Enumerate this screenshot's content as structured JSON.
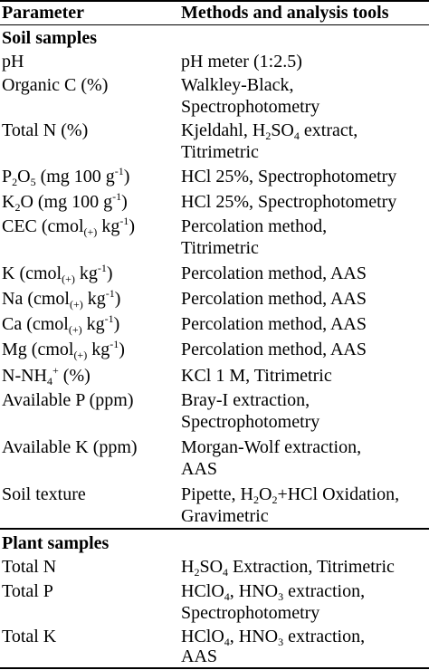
{
  "table": {
    "headers": {
      "parameter": "Parameter",
      "methods": "Methods and analysis tools"
    },
    "sections": {
      "soil": "Soil samples",
      "plant": "Plant samples"
    },
    "rows": {
      "ph": {
        "p": "pH",
        "m": [
          "pH meter (1:2.5)"
        ]
      },
      "organic_c": {
        "p": "Organic C (%)",
        "m": [
          "Walkley-Black,",
          "Spectrophotometry"
        ]
      },
      "total_n": {
        "p": "Total N (%)",
        "m_a": "Kjeldahl, H",
        "m_sub": "2",
        "m_b": "SO",
        "m_sub2": "4",
        "m_c": " extract,",
        "m2": "Titrimetric"
      },
      "p2o5": {
        "p_a": "P",
        "p_sub": "2",
        "p_b": "O",
        "p_sub2": "5",
        "p_c": " (mg 100 g",
        "p_sup": "-1",
        "p_d": ")",
        "m": "HCl 25%, Spectrophotometry"
      },
      "k2o": {
        "p_a": "K",
        "p_sub": "2",
        "p_b": "O (mg 100 g",
        "p_sup": "-1",
        "p_c": ")",
        "m": "HCl 25%, Spectrophotometry"
      },
      "cec": {
        "p_a": "CEC (cmol",
        "p_sub": "(+)",
        "p_b": " kg",
        "p_sup": "-1",
        "p_c": ")",
        "m": [
          "Percolation method,",
          "Titrimetric"
        ]
      },
      "k": {
        "p_a": "K (cmol",
        "p_sub": "(+)",
        "p_b": " kg",
        "p_sup": "-1",
        "p_c": ")",
        "m": "Percolation method, AAS"
      },
      "na": {
        "p_a": "Na (cmol",
        "p_sub": "(+)",
        "p_b": " kg",
        "p_sup": "-1",
        "p_c": ")",
        "m": "Percolation method, AAS"
      },
      "ca": {
        "p_a": "Ca (cmol",
        "p_sub": "(+)",
        "p_b": " kg",
        "p_sup": "-1",
        "p_c": ")",
        "m": "Percolation method, AAS"
      },
      "mg": {
        "p_a": "Mg (cmol",
        "p_sub": "(+)",
        "p_b": " kg",
        "p_sup": "-1",
        "p_c": ")",
        "m": "Percolation method, AAS"
      },
      "nh4": {
        "p_a": "N-NH",
        "p_sub": "4",
        "p_sup": "+",
        "p_b": " (%)",
        "m": "KCl 1 M, Titrimetric"
      },
      "avail_p": {
        "p": "Available P (ppm)",
        "m": [
          "Bray-I extraction,",
          "Spectrophotometry"
        ]
      },
      "avail_k": {
        "p": "Available K (ppm)",
        "m": [
          "Morgan-Wolf extraction,",
          "AAS"
        ]
      },
      "texture": {
        "p": "Soil texture",
        "m_a": "Pipette, H",
        "m_sub": "2",
        "m_b": "O",
        "m_sub2": "2",
        "m_c": "+HCl Oxidation,",
        "m2": "Gravimetric"
      },
      "plant_n": {
        "p": "Total N",
        "m_a": "H",
        "m_sub": "2",
        "m_b": "SO",
        "m_sub2": "4",
        "m_c": " Extraction, Titrimetric"
      },
      "plant_p": {
        "p": "Total P",
        "m_a": "HClO",
        "m_sub": "4",
        "m_b": ", HNO",
        "m_sub2": "3",
        "m_c": " extraction,",
        "m2": "Spectrophotometry"
      },
      "plant_k": {
        "p": "Total K",
        "m_a": "HClO",
        "m_sub": "4",
        "m_b": ", HNO",
        "m_sub2": "3",
        "m_c": " extraction,",
        "m2": "AAS"
      }
    }
  }
}
